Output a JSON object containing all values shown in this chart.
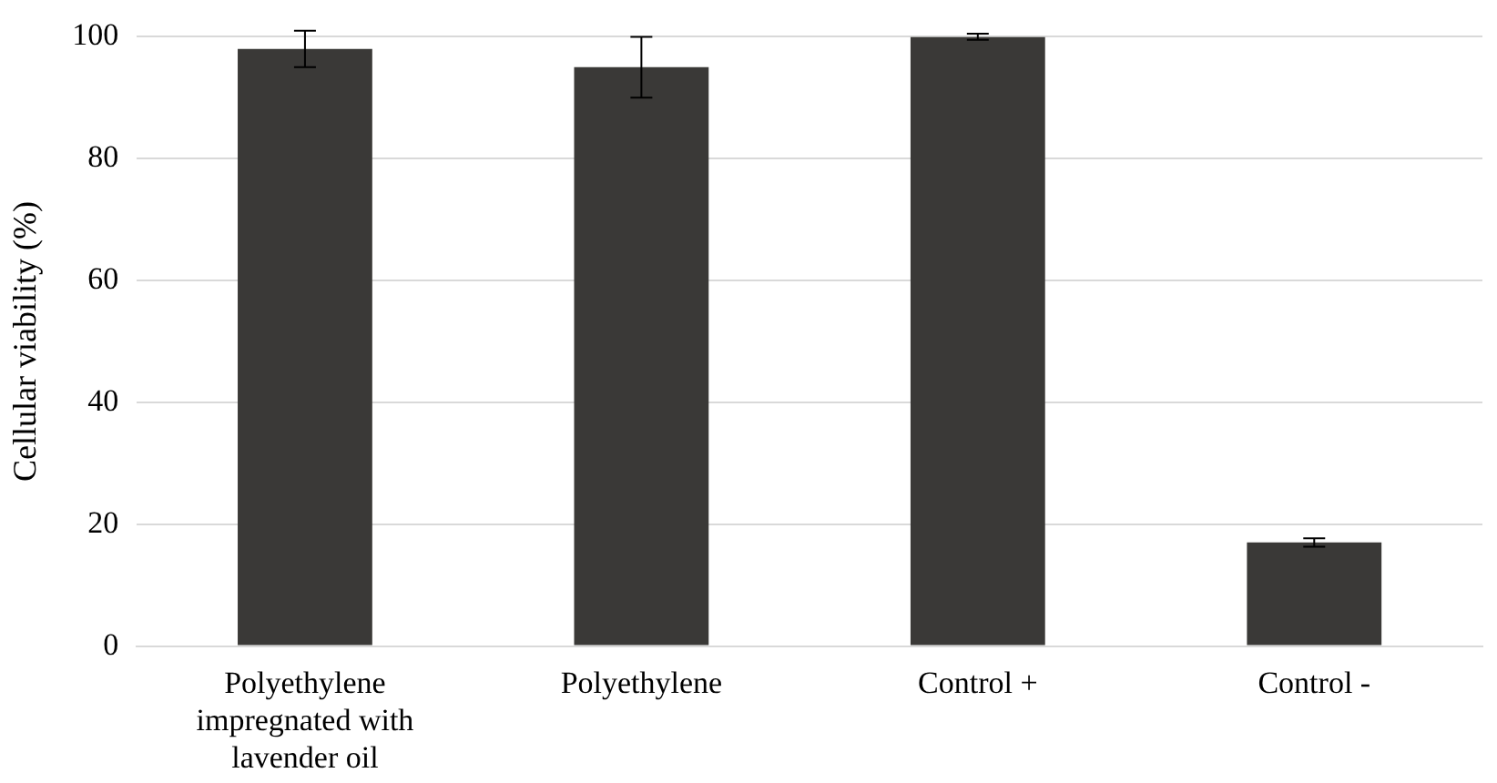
{
  "chart_data": {
    "type": "bar",
    "ylabel": "Cellular viability (%)",
    "categories": [
      "Polyethylene impregnated with lavender oil",
      "Polyethylene",
      "Control +",
      "Control -"
    ],
    "values": [
      98,
      95,
      100,
      17
    ],
    "errors": [
      3,
      5,
      0.5,
      0.7
    ],
    "color": "#3a3937",
    "ylim": [
      0,
      100
    ],
    "yticks": [
      0,
      20,
      40,
      60,
      80,
      100
    ],
    "grid": "y",
    "legend": false
  }
}
